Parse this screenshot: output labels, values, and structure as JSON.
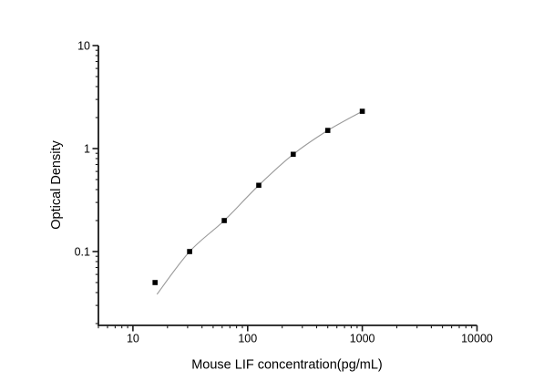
{
  "chart_data": {
    "type": "line",
    "title": "",
    "xlabel": "Mouse LIF concentration(pg/mL)",
    "ylabel": "Optical Density",
    "xscale": "log",
    "yscale": "log",
    "xlim": [
      5,
      10000
    ],
    "ylim": [
      0.0192,
      10
    ],
    "x": [
      15.6,
      31.2,
      62.5,
      125,
      250,
      500,
      1000
    ],
    "od": [
      0.05,
      0.1,
      0.2,
      0.44,
      0.88,
      1.5,
      2.3
    ],
    "x_ticks": [
      {
        "v": 10,
        "label": "10"
      },
      {
        "v": 100,
        "label": "100"
      },
      {
        "v": 1000,
        "label": "1000"
      },
      {
        "v": 10000,
        "label": "10000"
      }
    ],
    "y_ticks": [
      {
        "v": 0.1,
        "label": "0.1"
      },
      {
        "v": 1,
        "label": "1"
      },
      {
        "v": 10,
        "label": "10"
      }
    ],
    "fit_line_start": {
      "x": 16.2,
      "od": 0.0385
    },
    "grid": "off",
    "legend": "none",
    "marker": "filled-square",
    "colors": {
      "axis": "#1a1a1a",
      "marker": "#000000",
      "line": "#999999",
      "text": "#000000",
      "background": "#ffffff"
    }
  }
}
